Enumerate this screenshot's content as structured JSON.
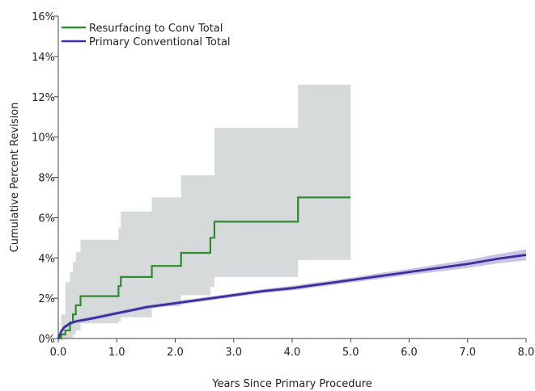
{
  "chart_data": {
    "type": "line",
    "title": "",
    "xlabel": "Years Since Primary Procedure",
    "ylabel": "Cumulative Percent Revision",
    "xlim": [
      0,
      8
    ],
    "ylim": [
      0,
      16
    ],
    "xticks": [
      0,
      1,
      2,
      3,
      4,
      5,
      6,
      7,
      8
    ],
    "xtick_labels": [
      "0.0",
      "1.0",
      "2.0",
      "3.0",
      "4.0",
      "5.0",
      "6.0",
      "7.0",
      "8.0"
    ],
    "yticks": [
      0,
      2,
      4,
      6,
      8,
      10,
      12,
      14,
      16
    ],
    "ytick_labels": [
      "0%",
      "2%",
      "4%",
      "6%",
      "8%",
      "10%",
      "12%",
      "14%",
      "16%"
    ],
    "grid": false,
    "legend_position": "top-left",
    "series": [
      {
        "name": "Resurfacing to Conv Total",
        "color": "#2e8b2e",
        "step": true,
        "x": [
          0,
          0.05,
          0.12,
          0.2,
          0.25,
          0.3,
          0.38,
          1.03,
          1.07,
          1.6,
          2.1,
          2.6,
          2.67,
          4.1,
          5.0
        ],
        "y": [
          0,
          0.2,
          0.4,
          0.8,
          1.2,
          1.65,
          2.1,
          2.6,
          3.05,
          3.6,
          4.25,
          5.0,
          5.8,
          7.0,
          7.0
        ],
        "ci_upper": [
          0,
          1.2,
          2.8,
          3.3,
          3.8,
          4.3,
          4.9,
          5.5,
          6.3,
          7.0,
          8.1,
          8.1,
          10.45,
          12.6,
          12.6
        ],
        "ci_lower": [
          0,
          0,
          0,
          0.05,
          0.2,
          0.4,
          0.75,
          0.85,
          1.05,
          1.6,
          2.15,
          2.55,
          3.05,
          3.9,
          3.9
        ]
      },
      {
        "name": "Primary Conventional Total",
        "color": "#3b2f9e",
        "step": false,
        "x": [
          0,
          0.05,
          0.1,
          0.2,
          0.3,
          0.5,
          0.75,
          1.0,
          1.25,
          1.5,
          2.0,
          2.5,
          3.0,
          3.5,
          4.0,
          4.5,
          5.0,
          5.5,
          6.0,
          6.5,
          7.0,
          7.5,
          8.0
        ],
        "y": [
          0,
          0.35,
          0.55,
          0.75,
          0.85,
          0.95,
          1.1,
          1.25,
          1.4,
          1.55,
          1.75,
          1.95,
          2.15,
          2.35,
          2.5,
          2.7,
          2.9,
          3.1,
          3.3,
          3.5,
          3.7,
          3.95,
          4.15
        ],
        "ci_upper": [
          0,
          0.45,
          0.65,
          0.85,
          0.95,
          1.05,
          1.2,
          1.35,
          1.5,
          1.65,
          1.85,
          2.05,
          2.25,
          2.45,
          2.62,
          2.82,
          3.02,
          3.25,
          3.45,
          3.68,
          3.9,
          4.18,
          4.42
        ],
        "ci_lower": [
          0,
          0.25,
          0.45,
          0.65,
          0.75,
          0.85,
          1.0,
          1.15,
          1.3,
          1.45,
          1.65,
          1.85,
          2.05,
          2.25,
          2.38,
          2.58,
          2.78,
          2.95,
          3.15,
          3.32,
          3.5,
          3.72,
          3.88
        ]
      }
    ]
  }
}
